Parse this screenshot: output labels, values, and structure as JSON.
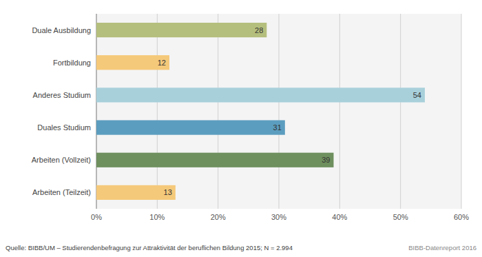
{
  "chart_data": {
    "type": "bar",
    "orientation": "horizontal",
    "categories": [
      "Duale Ausbildung",
      "Fortbildung",
      "Anderes Studium",
      "Duales Studium",
      "Arbeiten (Vollzeit)",
      "Arbeiten (Teilzeit)"
    ],
    "values": [
      28,
      12,
      54,
      31,
      39,
      13
    ],
    "colors": [
      "#b5bf7d",
      "#f5c97a",
      "#a8d0db",
      "#5b9dbf",
      "#6e8f5e",
      "#f5c97a"
    ],
    "xlim": [
      0,
      60
    ],
    "xticks": [
      {
        "value": 0,
        "label": "0%"
      },
      {
        "value": 10,
        "label": "10%"
      },
      {
        "value": 20,
        "label": "20%"
      },
      {
        "value": 30,
        "label": "30%"
      },
      {
        "value": 40,
        "label": "40%"
      },
      {
        "value": 50,
        "label": "50%"
      },
      {
        "value": 60,
        "label": "60%"
      }
    ],
    "grid": true,
    "data_labels": true,
    "annotations": [
      "Quelle: BIBB/UM – Studierendenbefragung zur Attraktivität der beruflichen Bildung 2015; N = 2.994",
      "BIBB-Datenreport 2016"
    ]
  }
}
